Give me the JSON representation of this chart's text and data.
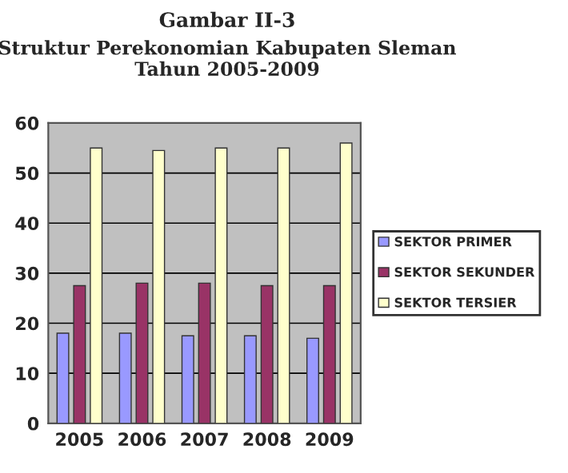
{
  "chart_data": {
    "type": "bar",
    "title": "Gambar II-3",
    "subtitle": "Struktur Perekonomian Kabupaten Sleman\nTahun 2005-2009",
    "categories": [
      "2005",
      "2006",
      "2007",
      "2008",
      "2009"
    ],
    "series": [
      {
        "name": "SEKTOR PRIMER",
        "color": "#9999ff",
        "values": [
          18,
          18,
          17.5,
          17.5,
          17
        ]
      },
      {
        "name": "SEKTOR SEKUNDER",
        "color": "#993366",
        "values": [
          27.5,
          28,
          28,
          27.5,
          27.5
        ]
      },
      {
        "name": "SEKTOR TERSIER",
        "color": "#ffffcc",
        "values": [
          55,
          54.5,
          55,
          55,
          56
        ]
      }
    ],
    "ylim": [
      0,
      60
    ],
    "yticks": [
      0,
      10,
      20,
      30,
      40,
      50,
      60
    ],
    "grid": "y",
    "legend": "right"
  }
}
